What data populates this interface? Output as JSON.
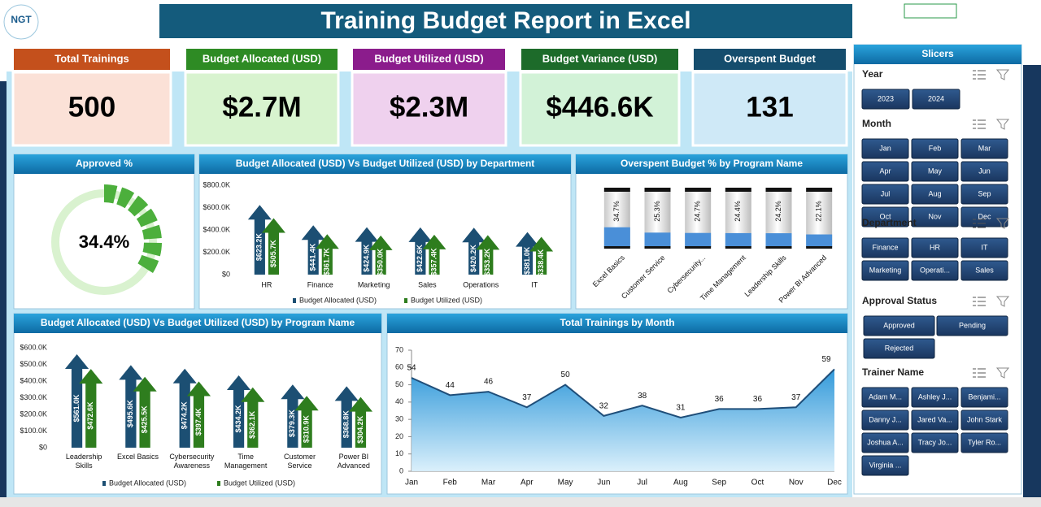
{
  "logo": "NGT",
  "title": "Training Budget Report in Excel",
  "kpis": [
    {
      "label": "Total Trainings",
      "value": "500",
      "color": "#c4501c",
      "bg": "#fbe1d7"
    },
    {
      "label": "Budget Allocated (USD)",
      "value": "$2.7M",
      "color": "#2e8b24",
      "bg": "#d8f3cf"
    },
    {
      "label": "Budget Utilized (USD)",
      "value": "$2.3M",
      "color": "#8b1c8c",
      "bg": "#efd1ee"
    },
    {
      "label": "Budget Variance (USD)",
      "value": "$446.6K",
      "color": "#1d6b2a",
      "bg": "#d2f2d7"
    },
    {
      "label": "Overspent Budget",
      "value": "131",
      "color": "#154d6d",
      "bg": "#cfe9f7"
    }
  ],
  "chart_data": [
    {
      "type": "donut",
      "title": "Approved %",
      "values": [
        34.4
      ],
      "value_labels": [
        "34.4%"
      ],
      "color": "#4caf3c",
      "track_color": "#d9f2cf"
    },
    {
      "type": "bar",
      "title": "Budget Allocated (USD) Vs Budget Utilized (USD) by Department",
      "categories": [
        "HR",
        "Finance",
        "Marketing",
        "Sales",
        "Operations",
        "IT"
      ],
      "series": [
        {
          "name": "Budget Allocated (USD)",
          "color": "#1c4f73",
          "values": [
            623200,
            441400,
            424900,
            422600,
            420200,
            381000
          ],
          "value_labels": [
            "$623.2K",
            "$441.4K",
            "$424.9K",
            "$422.6K",
            "$420.2K",
            "$381.0K"
          ]
        },
        {
          "name": "Budget Utilized (USD)",
          "color": "#2e7d1e",
          "values": [
            505700,
            361700,
            350000,
            357400,
            353200,
            338400
          ],
          "value_labels": [
            "$505.7K",
            "$361.7K",
            "$350.0K",
            "$357.4K",
            "$353.2K",
            "$338.4K"
          ]
        }
      ],
      "ylim": [
        0,
        800000
      ],
      "yticks": [
        {
          "value": 0,
          "label": "$0"
        },
        {
          "value": 200000,
          "label": "$200.0K"
        },
        {
          "value": 400000,
          "label": "$400.0K"
        },
        {
          "value": 600000,
          "label": "$600.0K"
        },
        {
          "value": 800000,
          "label": "$800.0K"
        }
      ]
    },
    {
      "type": "cylinder",
      "title": "Overspent Budget % by Program Name",
      "categories": [
        "Excel Basics",
        "Customer Service",
        "Cybersecurity...",
        "Time Management",
        "Leadership Skills",
        "Power BI Advanced"
      ],
      "values": [
        34.7,
        25.3,
        24.7,
        24.4,
        24.2,
        22.1
      ],
      "value_labels": [
        "34.7%",
        "25.3%",
        "24.7%",
        "24.4%",
        "24.2%",
        "22.1%"
      ],
      "ylim": [
        0,
        100
      ],
      "color": "#4a8fd8"
    },
    {
      "type": "bar",
      "title": "Budget Allocated (USD) Vs Budget Utilized (USD) by Program Name",
      "categories": [
        "Leadership Skills",
        "Excel Basics",
        "Cybersecurity Awareness",
        "Time Management",
        "Customer Service",
        "Power BI Advanced"
      ],
      "series": [
        {
          "name": "Budget Allocated (USD)",
          "color": "#1c4f73",
          "values": [
            561000,
            495600,
            474200,
            434200,
            379300,
            368800
          ],
          "value_labels": [
            "$561.0K",
            "$495.6K",
            "$474.2K",
            "$434.2K",
            "$379.3K",
            "$368.8K"
          ]
        },
        {
          "name": "Budget Utilized (USD)",
          "color": "#2e7d1e",
          "values": [
            472600,
            425500,
            397400,
            362100,
            310900,
            304200
          ],
          "value_labels": [
            "$472.6K",
            "$425.5K",
            "$397.4K",
            "$362.1K",
            "$310.9K",
            "$304.2K"
          ]
        }
      ],
      "ylim": [
        0,
        600000
      ],
      "yticks": [
        {
          "value": 0,
          "label": "$0"
        },
        {
          "value": 100000,
          "label": "$100.0K"
        },
        {
          "value": 200000,
          "label": "$200.0K"
        },
        {
          "value": 300000,
          "label": "$300.0K"
        },
        {
          "value": 400000,
          "label": "$400.0K"
        },
        {
          "value": 500000,
          "label": "$500.0K"
        },
        {
          "value": 600000,
          "label": "$600.0K"
        }
      ]
    },
    {
      "type": "line",
      "title": "Total Trainings by Month",
      "categories": [
        "Jan",
        "Feb",
        "Mar",
        "Apr",
        "May",
        "Jun",
        "Jul",
        "Aug",
        "Sep",
        "Oct",
        "Nov",
        "Dec"
      ],
      "values": [
        54,
        44,
        46,
        37,
        50,
        32,
        38,
        31,
        36,
        36,
        37,
        59
      ],
      "ylim": [
        0,
        70
      ],
      "yticks": [
        0,
        10,
        20,
        30,
        40,
        50,
        60,
        70
      ],
      "color": "#1f4e79",
      "area": true
    }
  ],
  "slicers": {
    "title": "Slicers",
    "groups": [
      {
        "name": "Year",
        "items": [
          "2023",
          "2024"
        ]
      },
      {
        "name": "Month",
        "items": [
          "Jan",
          "Feb",
          "Mar",
          "Apr",
          "May",
          "Jun",
          "Jul",
          "Aug",
          "Sep",
          "Oct",
          "Nov",
          "Dec"
        ]
      },
      {
        "name": "Department",
        "items": [
          "Finance",
          "HR",
          "IT",
          "Marketing",
          "Operati...",
          "Sales"
        ]
      },
      {
        "name": "Approval Status",
        "items": [
          "Approved",
          "Pending",
          "Rejected"
        ]
      },
      {
        "name": "Trainer Name",
        "items": [
          "Adam M...",
          "Ashley J...",
          "Benjami...",
          "Danny J...",
          "Jared Va...",
          "John Stark",
          "Joshua A...",
          "Tracy Jo...",
          "Tyler Ro...",
          "Virginia ..."
        ]
      }
    ]
  }
}
